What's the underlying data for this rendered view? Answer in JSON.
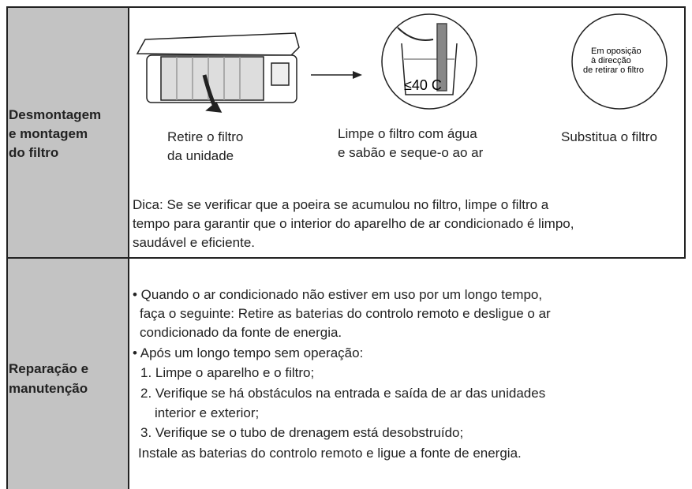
{
  "table": {
    "rows": [
      {
        "header": [
          "Desmontagem",
          "e montagem",
          "do filtro"
        ],
        "steps": [
          {
            "caption": [
              "Retire o filtro",
              "da unidade"
            ]
          },
          {
            "caption": [
              "Limpe o filtro com água",
              "e sabão e seque-o ao ar"
            ],
            "illustration_text": "≤40 C"
          },
          {
            "caption": [
              "Substitua o filtro"
            ],
            "illustration_text": [
              "Em oposição",
              "à direcção",
              "de retirar o filtro"
            ]
          }
        ],
        "tip": [
          "Dica: Se se verificar que a poeira se acumulou no filtro, limpe o filtro a",
          "tempo para garantir que o interior do aparelho de ar condicionado é limpo,",
          "saudável e eficiente."
        ]
      },
      {
        "header": [
          "Reparação e",
          "manutenção"
        ],
        "lines": [
          "• Quando o ar condicionado não estiver em uso por um longo tempo,",
          "faça o seguinte: Retire as baterias do controlo remoto e desligue o ar",
          "condicionado da fonte de energia.",
          "• Após um longo tempo sem operação:",
          "1. Limpe o aparelho e o filtro;",
          "2. Verifique se há obstáculos na entrada e saída de ar das unidades",
          "interior e exterior;",
          "3. Verifique se o tubo de drenagem está desobstruído;",
          "Instale as baterias do controlo remoto e ligue a fonte de energia."
        ]
      }
    ]
  }
}
